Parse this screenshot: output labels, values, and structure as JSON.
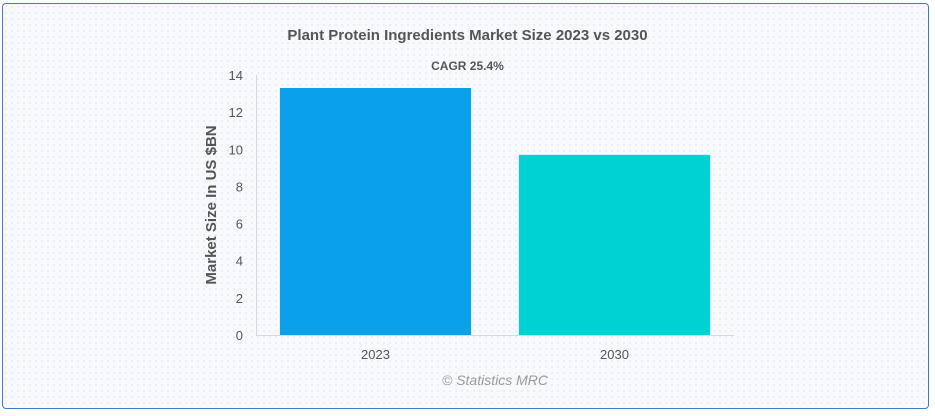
{
  "chart_data": {
    "type": "bar",
    "title": "Plant Protein Ingredients Market Size 2023 vs 2030",
    "subtitle": "CAGR 25.4%",
    "categories": [
      "2023",
      "2030"
    ],
    "values": [
      13.3,
      9.7
    ],
    "colors": [
      "#0aa0ea",
      "#00d2d3"
    ],
    "xlabel": "",
    "ylabel": "Market Size In US $BN",
    "ylim": [
      0,
      14
    ],
    "yticks": [
      0,
      2,
      4,
      6,
      8,
      10,
      12,
      14
    ],
    "grid": false,
    "legend": "none"
  },
  "watermark": "© Statistics MRC"
}
